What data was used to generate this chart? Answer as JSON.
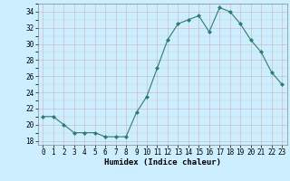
{
  "x": [
    0,
    1,
    2,
    3,
    4,
    5,
    6,
    7,
    8,
    9,
    10,
    11,
    12,
    13,
    14,
    15,
    16,
    17,
    18,
    19,
    20,
    21,
    22,
    23
  ],
  "y": [
    21,
    21,
    20,
    19,
    19,
    19,
    18.5,
    18.5,
    18.5,
    21.5,
    23.5,
    27,
    30.5,
    32.5,
    33,
    33.5,
    31.5,
    34.5,
    34,
    32.5,
    30.5,
    29,
    26.5,
    25
  ],
  "line_color": "#2d7d6f",
  "marker": "D",
  "marker_size": 2,
  "bg_color": "#cceeff",
  "grid_color_major": "#bbbbcc",
  "grid_color_minor": "#ddeedd",
  "xlabel": "Humidex (Indice chaleur)",
  "ylim": [
    17.5,
    35
  ],
  "xlim": [
    -0.5,
    23.5
  ],
  "yticks": [
    18,
    20,
    22,
    24,
    26,
    28,
    30,
    32,
    34
  ],
  "xticks": [
    0,
    1,
    2,
    3,
    4,
    5,
    6,
    7,
    8,
    9,
    10,
    11,
    12,
    13,
    14,
    15,
    16,
    17,
    18,
    19,
    20,
    21,
    22,
    23
  ],
  "label_fontsize": 6.5,
  "tick_fontsize": 5.5
}
